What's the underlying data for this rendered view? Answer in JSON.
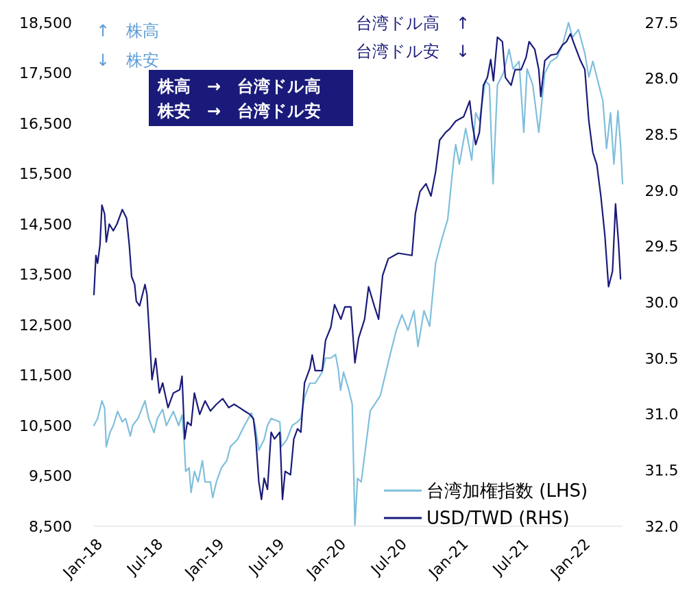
{
  "chart_data": {
    "type": "line",
    "xlim": [
      "2017-12-13",
      "2022-04-15"
    ],
    "xticks": [
      {
        "value": "2018-01-01",
        "label": "Jan-18"
      },
      {
        "value": "2018-07-01",
        "label": "Jul-18"
      },
      {
        "value": "2019-01-01",
        "label": "Jan-19"
      },
      {
        "value": "2019-07-01",
        "label": "Jul-19"
      },
      {
        "value": "2020-01-01",
        "label": "Jan-20"
      },
      {
        "value": "2020-07-01",
        "label": "Jul-20"
      },
      {
        "value": "2021-01-01",
        "label": "Jan-21"
      },
      {
        "value": "2021-07-01",
        "label": "Jul-21"
      },
      {
        "value": "2022-01-01",
        "label": "Jan-22"
      }
    ],
    "ylim": [
      8500,
      18500
    ],
    "yticks": [
      {
        "value": 8500,
        "label": "8,500"
      },
      {
        "value": 9500,
        "label": "9,500"
      },
      {
        "value": 10500,
        "label": "10,500"
      },
      {
        "value": 11500,
        "label": "11,500"
      },
      {
        "value": 12500,
        "label": "12,500"
      },
      {
        "value": 13500,
        "label": "13,500"
      },
      {
        "value": 14500,
        "label": "14,500"
      },
      {
        "value": 15500,
        "label": "15,500"
      },
      {
        "value": 16500,
        "label": "16,500"
      },
      {
        "value": 17500,
        "label": "17,500"
      },
      {
        "value": 18500,
        "label": "18,500"
      }
    ],
    "y2lim": [
      32.0,
      27.5
    ],
    "y2ticks": [
      {
        "value": 32.0,
        "label": "32.0"
      },
      {
        "value": 31.5,
        "label": "31.5"
      },
      {
        "value": 31.0,
        "label": "31.0"
      },
      {
        "value": 30.5,
        "label": "30.5"
      },
      {
        "value": 30.0,
        "label": "30.0"
      },
      {
        "value": 29.5,
        "label": "29.5"
      },
      {
        "value": 29.0,
        "label": "29.0"
      },
      {
        "value": 28.5,
        "label": "28.5"
      },
      {
        "value": 28.0,
        "label": "28.0"
      },
      {
        "value": 27.5,
        "label": "27.5"
      }
    ],
    "grid": false,
    "legend": "bottom right",
    "annotations": [
      "↑　株高",
      "↓　株安",
      "台湾ドル高　↑",
      "台湾ドル安　↓",
      "株高　→　台湾ドル高",
      "株安　→　台湾ドル安"
    ],
    "series": [
      {
        "name": "台湾加権指数 (LHS)",
        "color": "#7fbfdc",
        "x": [
          "2017-12-13",
          "2017-12-24",
          "2018-01-06",
          "2018-01-14",
          "2018-01-19",
          "2018-01-30",
          "2018-02-09",
          "2018-02-22",
          "2018-03-08",
          "2018-03-18",
          "2018-04-01",
          "2018-04-08",
          "2018-04-24",
          "2018-05-15",
          "2018-05-26",
          "2018-06-11",
          "2018-06-21",
          "2018-07-07",
          "2018-07-18",
          "2018-08-08",
          "2018-08-24",
          "2018-09-03",
          "2018-09-09",
          "2018-09-14",
          "2018-09-24",
          "2018-09-30",
          "2018-10-10",
          "2018-10-21",
          "2018-11-03",
          "2018-11-11",
          "2018-11-27",
          "2018-12-04",
          "2018-12-15",
          "2018-12-30",
          "2019-01-15",
          "2019-01-26",
          "2019-02-16",
          "2019-03-09",
          "2019-03-30",
          "2019-04-10",
          "2019-04-21",
          "2019-05-07",
          "2019-05-17",
          "2019-05-28",
          "2019-06-23",
          "2019-06-28",
          "2019-07-14",
          "2019-07-30",
          "2019-08-15",
          "2019-08-25",
          "2019-09-05",
          "2019-09-21",
          "2019-10-07",
          "2019-10-28",
          "2019-11-07",
          "2019-11-23",
          "2019-12-07",
          "2019-12-15",
          "2019-12-22",
          "2019-12-31",
          "2020-01-16",
          "2020-01-26",
          "2020-02-03",
          "2020-02-11",
          "2020-02-22",
          "2020-03-20",
          "2020-04-19",
          "2020-05-19",
          "2020-06-06",
          "2020-06-23",
          "2020-07-11",
          "2020-07-29",
          "2020-08-10",
          "2020-08-28",
          "2020-09-14",
          "2020-10-02",
          "2020-10-20",
          "2020-11-07",
          "2020-11-25",
          "2020-12-01",
          "2020-12-12",
          "2020-12-31",
          "2021-01-18",
          "2021-01-30",
          "2021-02-10",
          "2021-02-28",
          "2021-03-12",
          "2021-03-23",
          "2021-04-05",
          "2021-04-23",
          "2021-05-10",
          "2021-05-22",
          "2021-06-09",
          "2021-06-23",
          "2021-07-03",
          "2021-07-20",
          "2021-08-07",
          "2021-08-25",
          "2021-09-12",
          "2021-09-30",
          "2021-10-17",
          "2021-11-04",
          "2021-11-16",
          "2021-12-04",
          "2021-12-23",
          "2022-01-04",
          "2022-01-16",
          "2022-02-03",
          "2022-02-15",
          "2022-02-26",
          "2022-03-10",
          "2022-03-20",
          "2022-04-01",
          "2022-04-09",
          "2022-04-15"
        ],
        "values": [
          10500,
          10640,
          10990,
          10850,
          10080,
          10360,
          10500,
          10780,
          10570,
          10640,
          10290,
          10500,
          10640,
          10990,
          10640,
          10360,
          10640,
          10820,
          10500,
          10780,
          10500,
          10710,
          10220,
          9590,
          9660,
          9170,
          9590,
          9380,
          9800,
          9380,
          9380,
          9070,
          9380,
          9660,
          9800,
          10080,
          10220,
          10500,
          10750,
          10500,
          10010,
          10220,
          10500,
          10640,
          10570,
          10080,
          10220,
          10500,
          10570,
          10640,
          11060,
          11340,
          11340,
          11560,
          11840,
          11840,
          11910,
          11620,
          11200,
          11560,
          11200,
          10920,
          8520,
          9450,
          9380,
          10790,
          11090,
          11920,
          12390,
          12700,
          12390,
          12780,
          12070,
          12780,
          12470,
          13730,
          14190,
          14590,
          15770,
          16080,
          15690,
          16400,
          15770,
          16710,
          16550,
          17340,
          17260,
          15300,
          17260,
          17500,
          17970,
          17580,
          17730,
          16320,
          17580,
          17260,
          16320,
          17500,
          17730,
          17810,
          18050,
          18500,
          18210,
          18360,
          17890,
          17420,
          17730,
          17260,
          16950,
          16000,
          16710,
          15690,
          16750,
          16080,
          15300
        ]
      },
      {
        "name": "USD/TWD (RHS)",
        "color": "#1a1a7a",
        "axis": "y2",
        "x": [
          "2017-12-13",
          "2017-12-19",
          "2017-12-24",
          "2017-12-31",
          "2018-01-06",
          "2018-01-14",
          "2018-01-19",
          "2018-01-28",
          "2018-02-09",
          "2018-02-20",
          "2018-03-08",
          "2018-03-21",
          "2018-03-29",
          "2018-04-05",
          "2018-04-14",
          "2018-04-19",
          "2018-04-29",
          "2018-05-15",
          "2018-05-21",
          "2018-05-28",
          "2018-06-05",
          "2018-06-16",
          "2018-06-27",
          "2018-07-07",
          "2018-07-23",
          "2018-08-08",
          "2018-08-27",
          "2018-09-03",
          "2018-09-11",
          "2018-09-19",
          "2018-09-30",
          "2018-10-10",
          "2018-10-26",
          "2018-11-11",
          "2018-11-27",
          "2018-12-15",
          "2019-01-03",
          "2019-01-21",
          "2019-02-06",
          "2019-02-22",
          "2019-03-09",
          "2019-03-25",
          "2019-04-05",
          "2019-04-12",
          "2019-04-21",
          "2019-04-29",
          "2019-05-07",
          "2019-05-17",
          "2019-05-28",
          "2019-06-07",
          "2019-06-23",
          "2019-07-01",
          "2019-07-09",
          "2019-07-25",
          "2019-08-04",
          "2019-08-15",
          "2019-08-25",
          "2019-09-05",
          "2019-09-21",
          "2019-09-28",
          "2019-10-07",
          "2019-10-28",
          "2019-11-07",
          "2019-11-23",
          "2019-12-04",
          "2019-12-23",
          "2020-01-04",
          "2020-01-22",
          "2020-02-03",
          "2020-02-14",
          "2020-03-03",
          "2020-03-15",
          "2020-04-02",
          "2020-04-14",
          "2020-04-26",
          "2020-05-13",
          "2020-06-12",
          "2020-07-23",
          "2020-08-02",
          "2020-08-16",
          "2020-09-03",
          "2020-09-18",
          "2020-10-02",
          "2020-10-14",
          "2020-11-01",
          "2020-11-13",
          "2020-12-01",
          "2020-12-25",
          "2021-01-12",
          "2021-01-20",
          "2021-01-30",
          "2021-02-10",
          "2021-02-22",
          "2021-03-06",
          "2021-03-16",
          "2021-03-24",
          "2021-04-05",
          "2021-04-20",
          "2021-04-29",
          "2021-05-16",
          "2021-05-28",
          "2021-06-15",
          "2021-06-30",
          "2021-07-09",
          "2021-07-26",
          "2021-08-07",
          "2021-08-13",
          "2021-08-25",
          "2021-09-12",
          "2021-09-30",
          "2021-10-17",
          "2021-10-29",
          "2021-11-10",
          "2021-11-22",
          "2021-12-10",
          "2021-12-23",
          "2022-01-04",
          "2022-01-16",
          "2022-01-28",
          "2022-02-09",
          "2022-02-21",
          "2022-03-04",
          "2022-03-16",
          "2022-03-25",
          "2022-04-03",
          "2022-04-09"
        ],
        "values": [
          29.93,
          29.58,
          29.65,
          29.49,
          29.13,
          29.21,
          29.46,
          29.3,
          29.36,
          29.3,
          29.17,
          29.25,
          29.49,
          29.77,
          29.84,
          29.99,
          30.03,
          29.84,
          29.93,
          30.28,
          30.69,
          30.5,
          30.81,
          30.72,
          30.94,
          30.81,
          30.78,
          30.66,
          31.22,
          31.07,
          31.1,
          30.81,
          31.0,
          30.88,
          30.97,
          30.91,
          30.86,
          30.94,
          30.91,
          30.94,
          30.97,
          31.0,
          31.04,
          31.22,
          31.6,
          31.76,
          31.57,
          31.67,
          31.16,
          31.22,
          31.16,
          31.76,
          31.51,
          31.54,
          31.22,
          31.13,
          31.16,
          30.72,
          30.59,
          30.47,
          30.61,
          30.61,
          30.34,
          30.22,
          30.02,
          30.15,
          30.04,
          30.04,
          30.54,
          30.32,
          30.15,
          29.86,
          30.04,
          30.15,
          29.76,
          29.61,
          29.56,
          29.58,
          29.21,
          29.01,
          28.94,
          29.05,
          28.83,
          28.55,
          28.48,
          28.45,
          28.38,
          28.34,
          28.2,
          28.41,
          28.59,
          28.48,
          28.06,
          27.99,
          27.83,
          28.02,
          27.63,
          27.67,
          27.99,
          28.06,
          27.92,
          27.92,
          27.81,
          27.67,
          27.74,
          27.92,
          28.16,
          27.84,
          27.79,
          27.78,
          27.7,
          27.67,
          27.6,
          27.7,
          27.84,
          27.92,
          28.38,
          28.66,
          28.77,
          29.05,
          29.4,
          29.86,
          29.72,
          29.12,
          29.47,
          29.79
        ]
      }
    ]
  }
}
